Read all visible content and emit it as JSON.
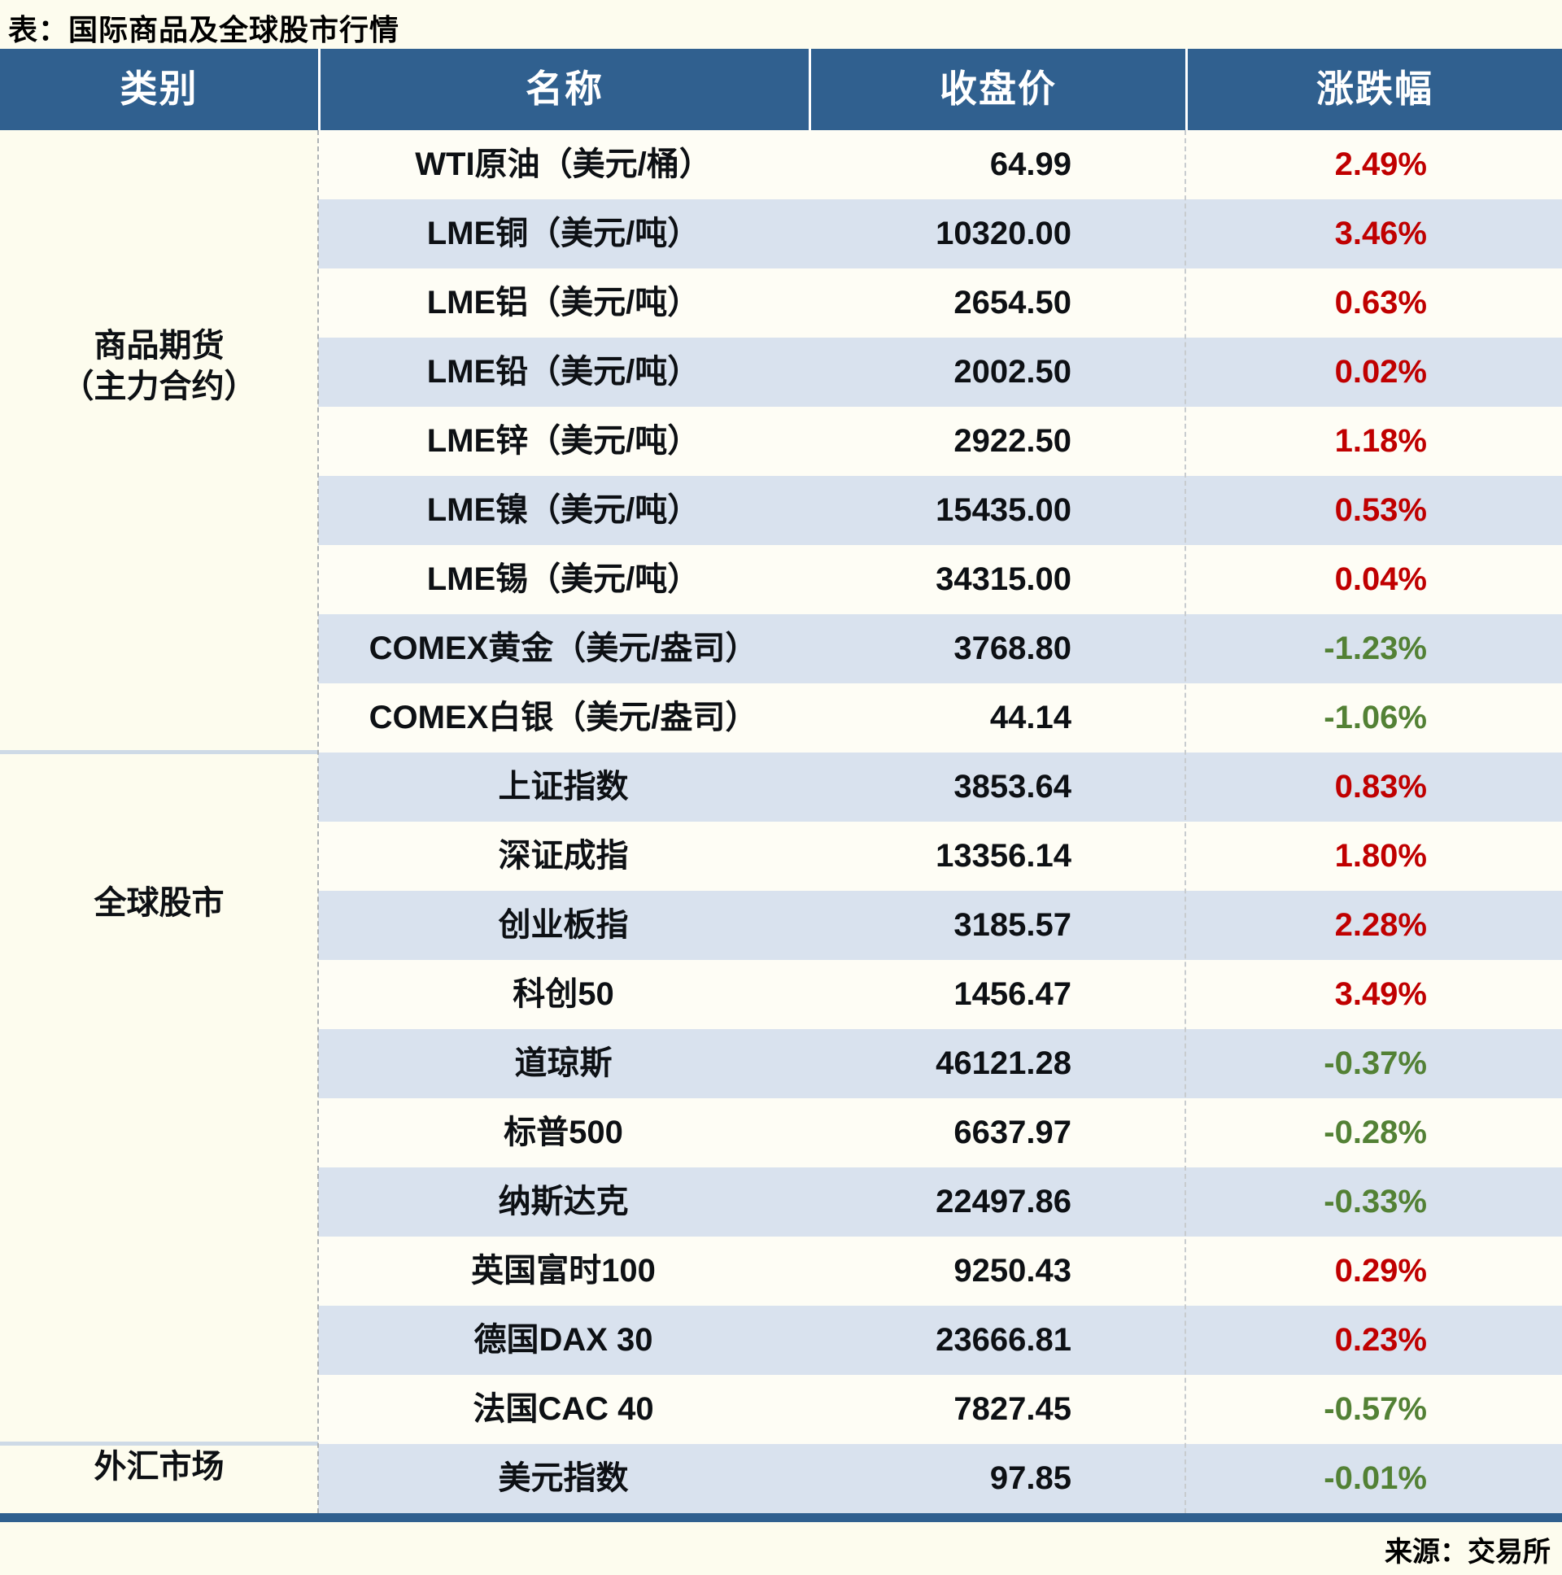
{
  "page": {
    "title": "表：国际商品及全球股市行情",
    "source_note": "来源：交易所",
    "bg_color": "#FDFCEE"
  },
  "chart_data": {
    "type": "table",
    "title": "国际商品及全球股市行情",
    "columns": [
      "类别",
      "名称",
      "收盘价",
      "涨跌幅"
    ],
    "up_color": "#C00000",
    "down_color": "#538135",
    "header_bg": "#30608F",
    "stripe_white": "#FEFDF5",
    "stripe_blue": "#D9E2EE",
    "sections": [
      {
        "category": "商品期货（主力合约）",
        "category_lines": [
          "商品期货",
          "（主力合约）"
        ],
        "rows": [
          {
            "name": "WTI原油（美元/桶）",
            "close": "64.99",
            "change": "2.49%"
          },
          {
            "name": "LME铜（美元/吨）",
            "close": "10320.00",
            "change": "3.46%"
          },
          {
            "name": "LME铝（美元/吨）",
            "close": "2654.50",
            "change": "0.63%"
          },
          {
            "name": "LME铅（美元/吨）",
            "close": "2002.50",
            "change": "0.02%"
          },
          {
            "name": "LME锌（美元/吨）",
            "close": "2922.50",
            "change": "1.18%"
          },
          {
            "name": "LME镍（美元/吨）",
            "close": "15435.00",
            "change": "0.53%"
          },
          {
            "name": "LME锡（美元/吨）",
            "close": "34315.00",
            "change": "0.04%"
          },
          {
            "name": "COMEX黄金（美元/盎司）",
            "close": "3768.80",
            "change": "-1.23%"
          },
          {
            "name": "COMEX白银（美元/盎司）",
            "close": "44.14",
            "change": "-1.06%"
          }
        ]
      },
      {
        "category": "全球股市",
        "category_lines": [
          "全球股市"
        ],
        "rows": [
          {
            "name": "上证指数",
            "close": "3853.64",
            "change": "0.83%"
          },
          {
            "name": "深证成指",
            "close": "13356.14",
            "change": "1.80%"
          },
          {
            "name": "创业板指",
            "close": "3185.57",
            "change": "2.28%"
          },
          {
            "name": "科创50",
            "close": "1456.47",
            "change": "3.49%"
          },
          {
            "name": "道琼斯",
            "close": "46121.28",
            "change": "-0.37%"
          },
          {
            "name": "标普500",
            "close": "6637.97",
            "change": "-0.28%"
          },
          {
            "name": "纳斯达克",
            "close": "22497.86",
            "change": "-0.33%"
          },
          {
            "name": "英国富时100",
            "close": "9250.43",
            "change": "0.29%"
          },
          {
            "name": "德国DAX 30",
            "close": "23666.81",
            "change": "0.23%"
          },
          {
            "name": "法国CAC 40",
            "close": "7827.45",
            "change": "-0.57%"
          }
        ]
      },
      {
        "category": "外汇市场",
        "category_lines": [
          "外汇市场"
        ],
        "rows": [
          {
            "name": "美元指数",
            "close": "97.85",
            "change": "-0.01%"
          }
        ]
      }
    ]
  }
}
